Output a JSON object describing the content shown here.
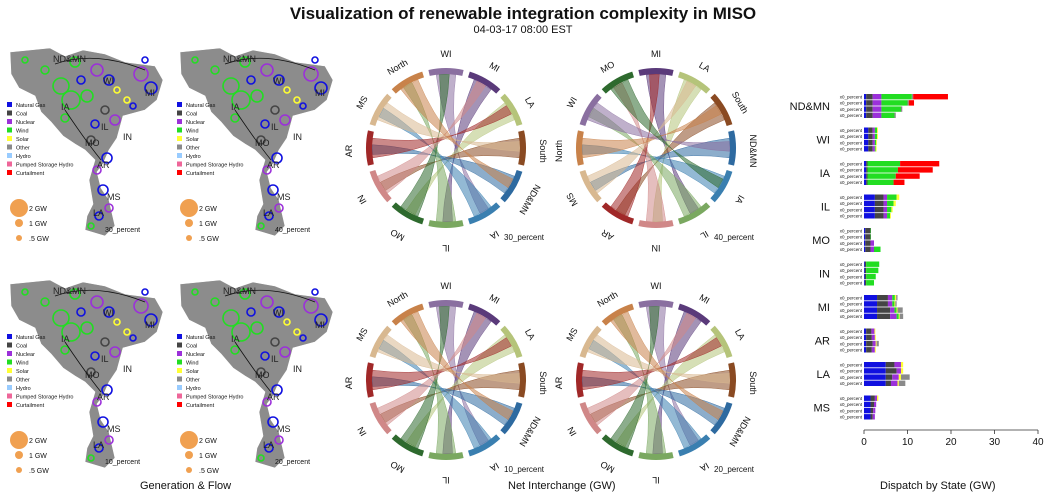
{
  "title": "Visualization of renewable integration complexity in MISO",
  "subtitle": "04-03-17 08:00 EST",
  "footers": {
    "maps": "Generation & Flow",
    "chords": "Net Interchange (GW)",
    "bars": "Dispatch by State (GW)"
  },
  "colors": {
    "natural_gas": "#1010e0",
    "coal": "#444444",
    "nuclear": "#9b30d9",
    "wind": "#22dd22",
    "solar": "#ffff33",
    "other": "#8a8a8a",
    "hydro": "#99ccff",
    "pumped_storage": "#ee6699",
    "curtailment": "#ff0000",
    "bubble": "#f0a050",
    "map_land": "#8c8c8c"
  },
  "legend": {
    "fuels": [
      {
        "label": "Natural Gas",
        "color": "#1010e0"
      },
      {
        "label": "Coal",
        "color": "#444444"
      },
      {
        "label": "Nuclear",
        "color": "#9b30d9"
      },
      {
        "label": "Wind",
        "color": "#22dd22"
      },
      {
        "label": "Solar",
        "color": "#ffff33"
      },
      {
        "label": "Other",
        "color": "#8a8a8a"
      },
      {
        "label": "Hydro",
        "color": "#99ccff"
      },
      {
        "label": "Pumped Storage Hydro",
        "color": "#ee6699"
      },
      {
        "label": "Curtailment",
        "color": "#ff0000"
      }
    ],
    "sizes": [
      "2 GW",
      "1 GW",
      ".5 GW"
    ]
  },
  "maps": [
    {
      "scenario": "30_percent",
      "labels": [
        "ND&MN",
        "WI",
        "MI",
        "IA",
        "IL",
        "IN",
        "MO",
        "AR",
        "LA",
        "MS"
      ]
    },
    {
      "scenario": "40_percent",
      "labels": [
        "ND&MN",
        "WI",
        "MI",
        "IA",
        "IL",
        "IN",
        "MO",
        "AR",
        "LA",
        "MS"
      ]
    },
    {
      "scenario": "10_percent",
      "labels": [
        "ND&MN",
        "WI",
        "MI",
        "IA",
        "IL",
        "IN",
        "MO",
        "AR",
        "LA",
        "MS"
      ]
    },
    {
      "scenario": "20_percent",
      "labels": [
        "ND&MN",
        "WI",
        "MI",
        "IA",
        "IL",
        "IN",
        "MO",
        "AR",
        "LA",
        "MS"
      ]
    }
  ],
  "chords": [
    {
      "scenario": "30_percent",
      "regions": [
        "WI",
        "MI",
        "LA",
        "South",
        "ND&MN",
        "IA",
        "IL",
        "MO",
        "IN",
        "AR",
        "MS",
        "North"
      ]
    },
    {
      "scenario": "40_percent",
      "regions": [
        "MI",
        "LA",
        "South",
        "ND&MN",
        "IA",
        "IL",
        "IN",
        "AR",
        "MS",
        "North",
        "WI",
        "MO"
      ]
    },
    {
      "scenario": "10_percent",
      "regions": [
        "WI",
        "MI",
        "LA",
        "South",
        "ND&MN",
        "IA",
        "IL",
        "MO",
        "IN",
        "AR",
        "MS",
        "North"
      ]
    },
    {
      "scenario": "20_percent",
      "regions": [
        "WI",
        "MI",
        "LA",
        "South",
        "ND&MN",
        "IA",
        "IL",
        "MO",
        "IN",
        "AR",
        "MS",
        "North"
      ]
    }
  ],
  "region_colors": {
    "North": "#c8824a",
    "WI": "#8a6fa0",
    "MI": "#5a3a7a",
    "LA": "#b5c47a",
    "South": "#8a4a22",
    "ND&MN": "#2e6aa0",
    "IA": "#3a7fb0",
    "IL": "#7aa860",
    "MO": "#2e6a2e",
    "IN": "#d08888",
    "AR": "#a02828",
    "MS": "#d8b890"
  },
  "chart_data": {
    "type": "bar",
    "orientation": "horizontal",
    "stacked": true,
    "xlabel": "Dispatch by State (GW)",
    "xlim": [
      0,
      40
    ],
    "xticks": [
      "0",
      "10",
      "20",
      "30",
      "40"
    ],
    "scenarios": [
      "x0_percent",
      "x0_percent",
      "x0_percent",
      "x0_percent"
    ],
    "fuel_order": [
      "Natural Gas",
      "Coal",
      "Nuclear",
      "Wind",
      "Solar",
      "Other",
      "Curtailment"
    ],
    "states": [
      {
        "name": "ND&MN",
        "bars": [
          [
            0.5,
            1.5,
            2,
            7,
            0,
            0.3,
            8
          ],
          [
            0.5,
            1.5,
            2,
            6,
            0,
            0.3,
            1.2
          ],
          [
            0.5,
            1.5,
            2,
            4.5,
            0,
            0.3,
            0
          ],
          [
            0.5,
            1.5,
            2,
            3,
            0,
            0.3,
            0
          ]
        ]
      },
      {
        "name": "WI",
        "bars": [
          [
            1,
            1,
            0.5,
            0.5,
            0.2,
            0,
            0
          ],
          [
            1,
            1,
            0.5,
            0.5,
            0.2,
            0,
            0
          ],
          [
            1,
            1,
            0.5,
            0.3,
            0.2,
            0,
            0
          ],
          [
            1,
            1,
            0.5,
            0.2,
            0.2,
            0,
            0
          ]
        ]
      },
      {
        "name": "IA",
        "bars": [
          [
            0.5,
            0.3,
            0,
            7.5,
            0,
            0,
            9
          ],
          [
            0.5,
            0.3,
            0,
            7,
            0,
            0,
            8
          ],
          [
            0.5,
            0.3,
            0,
            6.5,
            0,
            0,
            5.5
          ],
          [
            0.5,
            0.3,
            0,
            6,
            0,
            0,
            2.5
          ]
        ]
      },
      {
        "name": "IL",
        "bars": [
          [
            2.5,
            2,
            0.8,
            2.2,
            0.6,
            0,
            0
          ],
          [
            2.5,
            2,
            0.8,
            1.5,
            0.5,
            0,
            0
          ],
          [
            2.5,
            2,
            0.8,
            1,
            0.3,
            0,
            0
          ],
          [
            2.5,
            2,
            0.8,
            0.7,
            0.2,
            0,
            0
          ]
        ]
      },
      {
        "name": "MO",
        "bars": [
          [
            0.3,
            1.2,
            0,
            0.1,
            0,
            0,
            0
          ],
          [
            0.3,
            1.2,
            0,
            0.1,
            0,
            0,
            0
          ],
          [
            0.3,
            1.2,
            0.8,
            0,
            0,
            0,
            0
          ],
          [
            0.3,
            1.2,
            0.8,
            1.5,
            0,
            0,
            0
          ]
        ]
      },
      {
        "name": "IN",
        "bars": [
          [
            0.2,
            0.3,
            0,
            3,
            0,
            0,
            0
          ],
          [
            0.2,
            0.3,
            0,
            2.8,
            0,
            0,
            0
          ],
          [
            0.2,
            0.3,
            0,
            2.2,
            0,
            0,
            0
          ],
          [
            0.2,
            0.3,
            0,
            1.8,
            0,
            0,
            0
          ]
        ]
      },
      {
        "name": "MI",
        "bars": [
          [
            3,
            2.5,
            1,
            0.6,
            0.3,
            0.3,
            0
          ],
          [
            3,
            2.5,
            1,
            0.5,
            0.2,
            0.3,
            0
          ],
          [
            3,
            3,
            1,
            0.5,
            0.2,
            1.2,
            0
          ],
          [
            3,
            3,
            1.5,
            0.5,
            0.2,
            0.8,
            0
          ]
        ]
      },
      {
        "name": "AR",
        "bars": [
          [
            0.5,
            1.2,
            0.7,
            0,
            0.2,
            0,
            0
          ],
          [
            0.5,
            1.3,
            0.7,
            0,
            0.2,
            0,
            0
          ],
          [
            0.5,
            1.5,
            0.7,
            0,
            0.2,
            0.5,
            0
          ],
          [
            0.5,
            1.3,
            0.7,
            0,
            0.2,
            0,
            0
          ]
        ]
      },
      {
        "name": "LA",
        "bars": [
          [
            5,
            2,
            1.5,
            0,
            0.5,
            0,
            0
          ],
          [
            5,
            2.5,
            1,
            0,
            0.5,
            0,
            0
          ],
          [
            5,
            1.5,
            1.5,
            0,
            0.5,
            2,
            0
          ],
          [
            5,
            1.2,
            1.5,
            0,
            0.3,
            1.5,
            0
          ]
        ]
      },
      {
        "name": "MS",
        "bars": [
          [
            1.5,
            1,
            0.5,
            0,
            0.3,
            0,
            0
          ],
          [
            1.5,
            0.8,
            0.5,
            0,
            0,
            0,
            0
          ],
          [
            1.5,
            0.6,
            0.5,
            0,
            0,
            0,
            0
          ],
          [
            1.5,
            0.5,
            0.5,
            0,
            0,
            0,
            0
          ]
        ]
      }
    ]
  }
}
